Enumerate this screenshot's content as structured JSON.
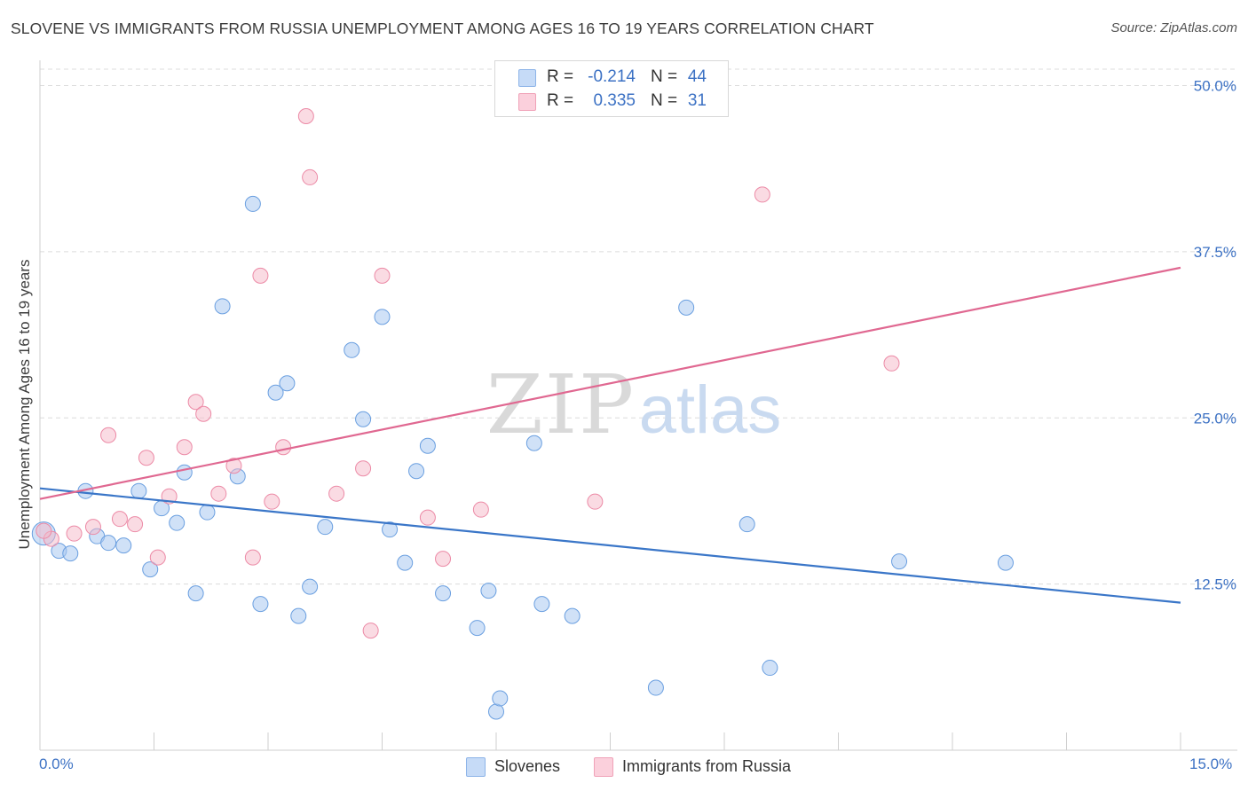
{
  "header": {
    "title": "SLOVENE VS IMMIGRANTS FROM RUSSIA UNEMPLOYMENT AMONG AGES 16 TO 19 YEARS CORRELATION CHART",
    "source": "Source: ZipAtlas.com"
  },
  "watermark": {
    "zip": "ZIP",
    "atlas": "atlas"
  },
  "legend": {
    "rows": [
      {
        "r_label": "R =",
        "r_value": "-0.214",
        "n_label": "N =",
        "n_value": "44",
        "color": "#a9c8f0"
      },
      {
        "r_label": "R =",
        "r_value": "0.335",
        "n_label": "N =",
        "n_value": "31",
        "color": "#f6b8c8"
      }
    ]
  },
  "bottom_legend": {
    "series1": "Slovenes",
    "series2": "Immigrants from Russia"
  },
  "axis_text": {
    "x_min": "0.0%",
    "x_max": "15.0%",
    "y_label": "Unemployment Among Ages 16 to 19 years",
    "y_ticks": [
      "50.0%",
      "37.5%",
      "25.0%",
      "12.5%"
    ]
  },
  "chart_data": {
    "type": "scatter",
    "xlabel": "",
    "ylabel": "Unemployment Among Ages 16 to 19 years",
    "xlim": [
      0,
      15
    ],
    "ylim": [
      0,
      50
    ],
    "y_ticks": [
      12.5,
      25.0,
      37.5,
      50.0
    ],
    "grid": true,
    "legend_position": "top-center",
    "series": [
      {
        "name": "Slovenes",
        "color": "#a9c8f0",
        "edge": "#6a9fe0",
        "trend_color": "#3a76c8",
        "r": -0.214,
        "n": 44,
        "trend": {
          "x": [
            0,
            15
          ],
          "y": [
            19.7,
            11.1
          ]
        },
        "points": [
          [
            0.05,
            16.3
          ],
          [
            0.25,
            15.0
          ],
          [
            0.4,
            14.8
          ],
          [
            0.6,
            19.5
          ],
          [
            0.75,
            16.1
          ],
          [
            0.9,
            15.6
          ],
          [
            1.1,
            15.4
          ],
          [
            1.3,
            19.5
          ],
          [
            1.45,
            13.6
          ],
          [
            1.6,
            18.2
          ],
          [
            1.8,
            17.1
          ],
          [
            1.9,
            20.9
          ],
          [
            2.05,
            11.8
          ],
          [
            2.2,
            17.9
          ],
          [
            2.4,
            33.4
          ],
          [
            2.6,
            20.6
          ],
          [
            2.8,
            41.1
          ],
          [
            2.9,
            11.0
          ],
          [
            3.1,
            26.9
          ],
          [
            3.25,
            27.6
          ],
          [
            3.4,
            10.1
          ],
          [
            3.55,
            12.3
          ],
          [
            3.75,
            16.8
          ],
          [
            4.1,
            30.1
          ],
          [
            4.25,
            24.9
          ],
          [
            4.5,
            32.6
          ],
          [
            4.6,
            16.6
          ],
          [
            4.8,
            14.1
          ],
          [
            4.95,
            21.0
          ],
          [
            5.1,
            22.9
          ],
          [
            5.3,
            11.8
          ],
          [
            5.75,
            9.2
          ],
          [
            5.9,
            12.0
          ],
          [
            6.0,
            2.9
          ],
          [
            6.05,
            3.9
          ],
          [
            6.5,
            23.1
          ],
          [
            6.6,
            11.0
          ],
          [
            7.0,
            10.1
          ],
          [
            8.1,
            4.7
          ],
          [
            8.5,
            33.3
          ],
          [
            9.3,
            17.0
          ],
          [
            9.6,
            6.2
          ],
          [
            11.3,
            14.2
          ],
          [
            12.7,
            14.1
          ]
        ]
      },
      {
        "name": "Immigrants from Russia",
        "color": "#f6b8c8",
        "edge": "#ec8aa6",
        "trend_color": "#e06891",
        "r": 0.335,
        "n": 31,
        "trend": {
          "x": [
            0,
            15
          ],
          "y": [
            18.9,
            36.3
          ]
        },
        "points": [
          [
            0.15,
            15.9
          ],
          [
            0.45,
            16.3
          ],
          [
            0.7,
            16.8
          ],
          [
            0.9,
            23.7
          ],
          [
            1.05,
            17.4
          ],
          [
            1.25,
            17.0
          ],
          [
            1.4,
            22.0
          ],
          [
            1.55,
            14.5
          ],
          [
            1.7,
            19.1
          ],
          [
            1.9,
            22.8
          ],
          [
            2.05,
            26.2
          ],
          [
            2.15,
            25.3
          ],
          [
            2.35,
            19.3
          ],
          [
            2.55,
            21.4
          ],
          [
            2.8,
            14.5
          ],
          [
            2.9,
            35.7
          ],
          [
            3.05,
            18.7
          ],
          [
            3.2,
            22.8
          ],
          [
            3.5,
            47.7
          ],
          [
            3.55,
            43.1
          ],
          [
            3.9,
            19.3
          ],
          [
            4.25,
            21.2
          ],
          [
            4.35,
            9.0
          ],
          [
            4.5,
            35.7
          ],
          [
            5.1,
            17.5
          ],
          [
            5.3,
            14.4
          ],
          [
            5.8,
            18.1
          ],
          [
            7.3,
            18.7
          ],
          [
            9.5,
            41.8
          ],
          [
            11.2,
            29.1
          ],
          [
            0.05,
            16.5
          ]
        ]
      }
    ]
  }
}
